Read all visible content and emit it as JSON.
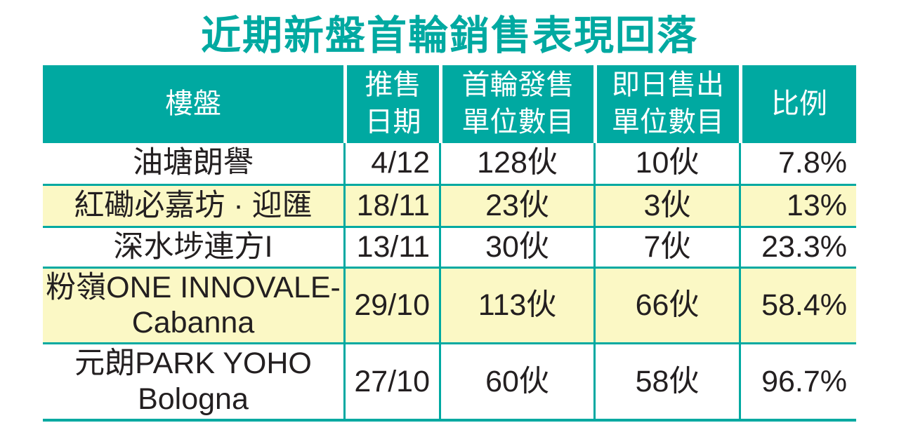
{
  "title": "近期新盤首輪銷售表現回落",
  "colors": {
    "accent_teal": "#00A9A1",
    "highlight_yellow": "#FBF8C5",
    "body_text": "#231F20",
    "header_text": "#FFFFFF"
  },
  "table": {
    "headers": [
      {
        "label": "樓盤"
      },
      {
        "label": "推售\n日期"
      },
      {
        "label": "首輪發售\n單位數目"
      },
      {
        "label": "即日售出\n單位數目"
      },
      {
        "label": "比例"
      }
    ],
    "rows": [
      {
        "name": "油塘朗譽",
        "date": "4/12",
        "first_round_units": "128伙",
        "sold_same_day_units": "10伙",
        "ratio": "7.8%"
      },
      {
        "name": "紅磡必嘉坊 · 迎匯",
        "date": "18/11",
        "first_round_units": "23伙",
        "sold_same_day_units": "3伙",
        "ratio": "13%"
      },
      {
        "name": "深水埗連方I",
        "date": "13/11",
        "first_round_units": "30伙",
        "sold_same_day_units": "7伙",
        "ratio": "23.3%"
      },
      {
        "name": "粉嶺ONE INNOVALE-\nCabanna",
        "date": "29/10",
        "first_round_units": "113伙",
        "sold_same_day_units": "66伙",
        "ratio": "58.4%"
      },
      {
        "name": "元朗PARK YOHO\nBologna",
        "date": "27/10",
        "first_round_units": "60伙",
        "sold_same_day_units": "58伙",
        "ratio": "96.7%"
      }
    ]
  },
  "chart_data": {
    "type": "table",
    "title": "近期新盤首輪銷售表現回落",
    "columns": [
      "樓盤",
      "推售日期",
      "首輪發售單位數目",
      "即日售出單位數目",
      "比例"
    ],
    "rows": [
      [
        "油塘朗譽",
        "4/12",
        "128伙",
        "10伙",
        "7.8%"
      ],
      [
        "紅磡必嘉坊 · 迎匯",
        "18/11",
        "23伙",
        "3伙",
        "13%"
      ],
      [
        "深水埗連方I",
        "13/11",
        "30伙",
        "7伙",
        "23.3%"
      ],
      [
        "粉嶺ONE INNOVALE-Cabanna",
        "29/10",
        "113伙",
        "66伙",
        "58.4%"
      ],
      [
        "元朗PARK YOHO Bologna",
        "27/10",
        "60伙",
        "58伙",
        "96.7%"
      ]
    ],
    "numeric": {
      "first_round_units": [
        128,
        23,
        30,
        113,
        60
      ],
      "sold_same_day_units": [
        10,
        3,
        7,
        66,
        58
      ],
      "ratio_percent": [
        7.8,
        13,
        23.3,
        58.4,
        96.7
      ]
    },
    "highlighted_row_indices": [
      1,
      3
    ]
  }
}
